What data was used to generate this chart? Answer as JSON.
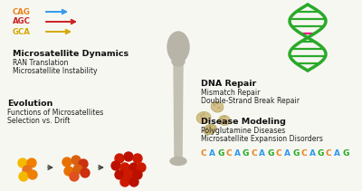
{
  "bg_color": "#f7f7f2",
  "cag_text": "CAG",
  "agc_text": "AGC",
  "gca_text": "GCA",
  "cag_color": "#e8801a",
  "agc_color": "#cc2020",
  "gca_color": "#d4a800",
  "arrow_color_cag": "#3399ee",
  "arrow_color_agc": "#cc2020",
  "arrow_color_gca": "#d4a800",
  "microsatellite_title": "Microsatellite Dynamics",
  "microsatellite_lines": [
    "RAN Translation",
    "Microsatellite Instability"
  ],
  "evolution_title": "Evolution",
  "evolution_lines": [
    "Functions of Microsatellites",
    "Selection vs. Drift"
  ],
  "dna_title": "DNA Repair",
  "dna_lines": [
    "Mismatch Repair",
    "Double-Strand Break Repair"
  ],
  "disease_title": "Disease Modeling",
  "disease_lines": [
    "Polyglutamine Diseases",
    "Microsatellite Expansion Disorders"
  ],
  "cag_repeat": "CAGCAGCAGCAGCAGCAG",
  "cag_repeat_colors": [
    "#e8801a",
    "#3399ee",
    "#22aa22",
    "#e8801a",
    "#3399ee",
    "#22aa22",
    "#e8801a",
    "#3399ee",
    "#22aa22",
    "#e8801a",
    "#3399ee",
    "#22aa22",
    "#e8801a",
    "#3399ee",
    "#22aa22",
    "#e8801a",
    "#3399ee",
    "#22aa22"
  ]
}
